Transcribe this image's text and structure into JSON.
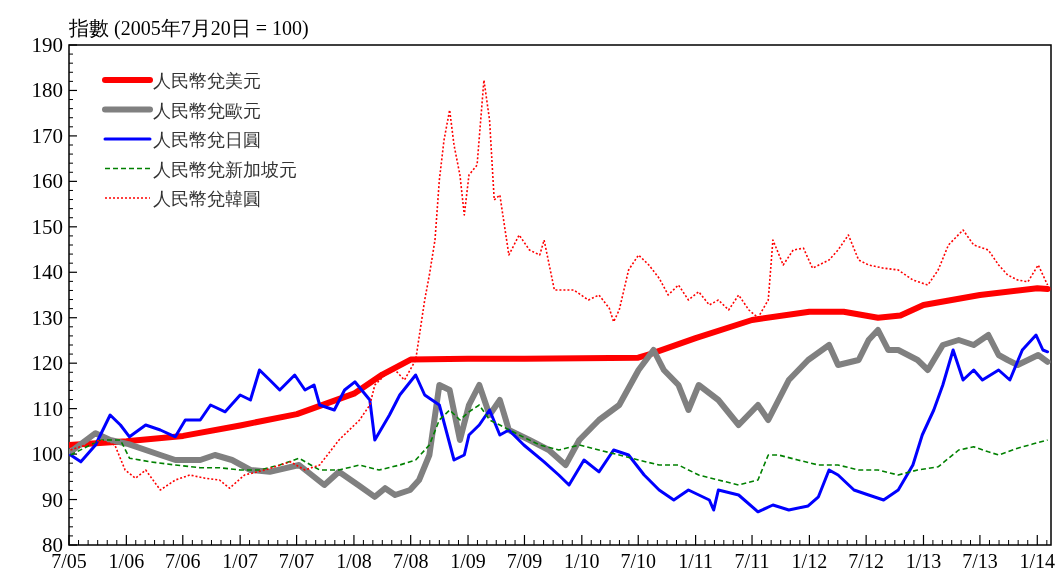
{
  "chart_data": {
    "type": "line",
    "ylabel": "指數 (2005年7月20日 = 100)",
    "xlim": [
      "2005-07-01",
      "2014-02-14"
    ],
    "ylim": [
      80,
      190
    ],
    "xticks": [
      {
        "value": "2005-07-01",
        "label": "7/05"
      },
      {
        "value": "2006-01-01",
        "label": "1/06"
      },
      {
        "value": "2006-07-01",
        "label": "7/06"
      },
      {
        "value": "2007-01-01",
        "label": "1/07"
      },
      {
        "value": "2007-07-01",
        "label": "7/07"
      },
      {
        "value": "2008-01-01",
        "label": "1/08"
      },
      {
        "value": "2008-07-01",
        "label": "7/08"
      },
      {
        "value": "2009-01-01",
        "label": "1/09"
      },
      {
        "value": "2009-07-01",
        "label": "7/09"
      },
      {
        "value": "2010-01-01",
        "label": "1/10"
      },
      {
        "value": "2010-07-01",
        "label": "7/10"
      },
      {
        "value": "2011-01-01",
        "label": "1/11"
      },
      {
        "value": "2011-07-01",
        "label": "7/11"
      },
      {
        "value": "2012-01-01",
        "label": "1/12"
      },
      {
        "value": "2012-07-01",
        "label": "7/12"
      },
      {
        "value": "2013-01-01",
        "label": "1/13"
      },
      {
        "value": "2013-07-01",
        "label": "7/13"
      },
      {
        "value": "2014-01-01",
        "label": "1/14"
      }
    ],
    "yticks": [
      80,
      90,
      100,
      110,
      120,
      130,
      140,
      150,
      160,
      170,
      180,
      190
    ],
    "grid": false,
    "legend": "top left",
    "series": [
      {
        "name": "人民幣兌美元",
        "color": "#ff0000",
        "line_style": "solid",
        "x": [
          "2005-07-02",
          "2006-01-01",
          "2006-07-02",
          "2007-01-01",
          "2007-07-02",
          "2008-01-01",
          "2008-04-01",
          "2008-07-01",
          "2009-01-01",
          "2009-07-01",
          "2010-01-01",
          "2010-07-01",
          "2010-08-08",
          "2011-01-01",
          "2011-07-01",
          "2012-01-01",
          "2012-04-20",
          "2012-08-08",
          "2012-10-19",
          "2013-01-01",
          "2013-07-01",
          "2014-01-01",
          "2014-02-03"
        ],
        "values": [
          102,
          102.8,
          104,
          106.3,
          108.8,
          113.3,
          117.5,
          120.8,
          121,
          121,
          121.1,
          121.2,
          122,
          125.5,
          129.5,
          131.3,
          131.3,
          130,
          130.5,
          132.8,
          135,
          136.5,
          136.3
        ]
      },
      {
        "name": "人民幣兌歐元",
        "color": "#808080",
        "line_style": "solid",
        "x": [
          "2005-07-06",
          "2005-09-24",
          "2005-11-10",
          "2006-01-08",
          "2006-04-20",
          "2006-06-07",
          "2006-08-26",
          "2006-10-12",
          "2006-12-06",
          "2007-02-03",
          "2007-04-06",
          "2007-07-09",
          "2007-09-28",
          "2007-11-14",
          "2008-01-19",
          "2008-03-08",
          "2008-04-10",
          "2008-05-12",
          "2008-06-29",
          "2008-07-28",
          "2008-08-30",
          "2008-10-01",
          "2008-11-03",
          "2008-12-06",
          "2009-01-04",
          "2009-02-06",
          "2009-03-11",
          "2009-04-13",
          "2009-05-12",
          "2009-07-17",
          "2009-09-17",
          "2009-11-10",
          "2009-12-24",
          "2010-02-25",
          "2010-05-01",
          "2010-07-02",
          "2010-08-19",
          "2010-09-21",
          "2010-11-07",
          "2010-12-09",
          "2011-01-11",
          "2011-03-15",
          "2011-05-19",
          "2011-07-20",
          "2011-08-22",
          "2011-10-27",
          "2011-12-28",
          "2012-03-04",
          "2012-04-02",
          "2012-06-07",
          "2012-07-09",
          "2012-08-08",
          "2012-09-10",
          "2012-10-12",
          "2012-12-13",
          "2013-01-15",
          "2013-03-04",
          "2013-04-24",
          "2013-06-11",
          "2013-07-28",
          "2013-08-30",
          "2013-09-28",
          "2013-10-30",
          "2014-01-04",
          "2014-02-03"
        ],
        "values": [
          100.5,
          104.6,
          103.1,
          102.2,
          99.8,
          98.7,
          98.7,
          99.8,
          98.7,
          96.5,
          96.1,
          97.6,
          93.2,
          96.1,
          93.0,
          90.6,
          92.5,
          91.0,
          92.1,
          94.3,
          99.8,
          115.2,
          114.1,
          103.1,
          110.8,
          115.2,
          108.6,
          111.9,
          105.3,
          103.1,
          100.9,
          97.6,
          103.1,
          107.5,
          110.8,
          118.5,
          122.9,
          118.5,
          115.2,
          109.7,
          115.2,
          111.9,
          106.4,
          110.8,
          107.5,
          116.3,
          120.7,
          124.0,
          119.6,
          120.7,
          125.1,
          127.3,
          122.9,
          122.9,
          120.7,
          118.5,
          124.0,
          125.1,
          124.0,
          126.2,
          121.8,
          120.7,
          119.6,
          121.8,
          120.3
        ]
      },
      {
        "name": "人民幣兌日圓",
        "color": "#0000ff",
        "line_style": "solid",
        "x": [
          "2005-07-06",
          "2005-08-08",
          "2005-09-24",
          "2005-11-10",
          "2005-12-13",
          "2006-01-11",
          "2006-03-04",
          "2006-04-20",
          "2006-06-07",
          "2006-07-09",
          "2006-08-26",
          "2006-09-28",
          "2006-11-14",
          "2007-01-01",
          "2007-02-03",
          "2007-03-04",
          "2007-04-06",
          "2007-05-08",
          "2007-06-25",
          "2007-07-28",
          "2007-08-26",
          "2007-09-13",
          "2007-10-30",
          "2007-12-02",
          "2008-01-04",
          "2008-02-21",
          "2008-03-08",
          "2008-04-24",
          "2008-05-27",
          "2008-07-17",
          "2008-08-15",
          "2008-10-01",
          "2008-11-17",
          "2008-12-20",
          "2009-01-04",
          "2009-02-06",
          "2009-03-11",
          "2009-04-13",
          "2009-05-12",
          "2009-06-29",
          "2009-09-02",
          "2009-10-19",
          "2009-11-21",
          "2010-01-08",
          "2010-02-25",
          "2010-04-13",
          "2010-05-31",
          "2010-07-20",
          "2010-09-06",
          "2010-10-23",
          "2010-12-09",
          "2011-02-14",
          "2011-02-28",
          "2011-03-15",
          "2011-05-19",
          "2011-07-20",
          "2011-09-06",
          "2011-10-27",
          "2011-12-28",
          "2012-01-30",
          "2012-03-04",
          "2012-04-02",
          "2012-05-23",
          "2012-07-09",
          "2012-08-26",
          "2012-10-12",
          "2012-11-28",
          "2012-12-28",
          "2013-02-03",
          "2013-03-04",
          "2013-04-06",
          "2013-05-08",
          "2013-06-11",
          "2013-07-09",
          "2013-08-30",
          "2013-10-05",
          "2013-11-14",
          "2013-12-28",
          "2014-01-19",
          "2014-02-03"
        ],
        "values": [
          99.8,
          98.3,
          102.0,
          108.6,
          106.4,
          103.8,
          106.4,
          105.3,
          103.8,
          107.5,
          107.5,
          110.8,
          109.3,
          113.0,
          111.9,
          118.5,
          116.3,
          114.1,
          117.4,
          114.1,
          115.2,
          110.8,
          109.7,
          114.1,
          115.9,
          111.9,
          103.1,
          108.6,
          113.0,
          117.4,
          113.0,
          110.8,
          98.7,
          99.8,
          104.2,
          106.4,
          109.7,
          104.2,
          105.3,
          102.0,
          98.3,
          95.4,
          93.2,
          98.7,
          96.1,
          100.9,
          99.8,
          95.4,
          92.1,
          89.9,
          92.1,
          89.9,
          87.7,
          92.1,
          91.0,
          87.3,
          88.8,
          87.7,
          88.6,
          90.6,
          96.5,
          95.4,
          92.1,
          91.0,
          89.9,
          92.1,
          97.6,
          104.2,
          109.7,
          115.2,
          122.9,
          116.3,
          118.5,
          116.3,
          118.5,
          116.3,
          122.9,
          126.2,
          122.9,
          122.5
        ]
      },
      {
        "name": "人民幣兌新加坡元",
        "color": "#008000",
        "line_style": "dashed",
        "x": [
          "2005-07-06",
          "2005-10-09",
          "2005-12-13",
          "2006-01-11",
          "2006-03-19",
          "2006-06-07",
          "2006-08-26",
          "2006-10-27",
          "2007-01-01",
          "2007-03-04",
          "2007-05-08",
          "2007-07-09",
          "2007-09-13",
          "2007-11-14",
          "2008-01-19",
          "2008-03-22",
          "2008-05-27",
          "2008-07-17",
          "2008-08-30",
          "2008-10-01",
          "2008-11-03",
          "2008-12-06",
          "2009-01-04",
          "2009-02-06",
          "2009-03-11",
          "2009-04-13",
          "2009-06-14",
          "2009-08-19",
          "2009-10-19",
          "2009-12-24",
          "2010-02-25",
          "2010-05-01",
          "2010-07-02",
          "2010-09-06",
          "2010-11-07",
          "2011-01-11",
          "2011-03-15",
          "2011-05-19",
          "2011-07-20",
          "2011-08-22",
          "2011-09-24",
          "2011-11-25",
          "2012-01-30",
          "2012-04-02",
          "2012-06-07",
          "2012-08-08",
          "2012-10-12",
          "2012-12-13",
          "2013-02-17",
          "2013-04-24",
          "2013-06-11",
          "2013-07-28",
          "2013-08-30",
          "2013-10-30",
          "2013-12-17",
          "2014-02-03"
        ],
        "values": [
          99.8,
          103.1,
          103.1,
          99.1,
          98.3,
          97.6,
          97.0,
          97.0,
          96.5,
          96.5,
          97.6,
          99.1,
          96.5,
          96.5,
          97.6,
          96.5,
          97.6,
          98.7,
          102.0,
          107.5,
          109.7,
          107.5,
          109.3,
          110.8,
          107.5,
          106.4,
          104.2,
          102.0,
          100.9,
          102.0,
          100.9,
          99.8,
          98.7,
          97.6,
          97.6,
          95.4,
          94.3,
          93.2,
          94.3,
          99.8,
          99.8,
          98.7,
          97.6,
          97.6,
          96.5,
          96.5,
          95.4,
          96.5,
          97.2,
          100.9,
          101.6,
          100.5,
          99.8,
          101.3,
          102.2,
          103.1
        ]
      },
      {
        "name": "人民幣兌韓圓",
        "color": "#ff0000",
        "line_style": "dotted",
        "x": [
          "2005-07-06",
          "2005-10-09",
          "2005-11-25",
          "2005-12-28",
          "2006-01-30",
          "2006-03-04",
          "2006-04-20",
          "2006-06-07",
          "2006-07-24",
          "2006-09-10",
          "2006-10-27",
          "2006-11-28",
          "2007-01-15",
          "2007-03-22",
          "2007-06-11",
          "2007-07-28",
          "2007-09-13",
          "2007-11-14",
          "2007-12-17",
          "2008-01-19",
          "2008-02-21",
          "2008-03-08",
          "2008-04-10",
          "2008-05-12",
          "2008-06-11",
          "2008-07-17",
          "2008-08-15",
          "2008-08-30",
          "2008-09-17",
          "2008-10-01",
          "2008-10-16",
          "2008-11-03",
          "2008-11-17",
          "2008-12-06",
          "2008-12-20",
          "2009-01-04",
          "2009-01-30",
          "2009-02-21",
          "2009-03-11",
          "2009-03-26",
          "2009-04-13",
          "2009-05-12",
          "2009-06-14",
          "2009-07-17",
          "2009-08-19",
          "2009-09-02",
          "2009-10-05",
          "2009-12-06",
          "2010-01-22",
          "2010-02-25",
          "2010-03-30",
          "2010-04-13",
          "2010-05-01",
          "2010-05-31",
          "2010-07-02",
          "2010-08-04",
          "2010-09-06",
          "2010-10-05",
          "2010-11-07",
          "2010-12-09",
          "2011-01-11",
          "2011-02-14",
          "2011-03-15",
          "2011-04-17",
          "2011-05-19",
          "2011-06-21",
          "2011-07-20",
          "2011-08-22",
          "2011-09-06",
          "2011-10-09",
          "2011-11-10",
          "2011-12-13",
          "2012-01-11",
          "2012-03-04",
          "2012-04-02",
          "2012-05-05",
          "2012-06-07",
          "2012-07-09",
          "2012-08-26",
          "2012-10-12",
          "2012-11-28",
          "2013-01-15",
          "2013-02-17",
          "2013-03-22",
          "2013-05-08",
          "2013-06-11",
          "2013-07-28",
          "2013-08-30",
          "2013-09-28",
          "2013-10-30",
          "2013-12-02",
          "2014-01-04",
          "2014-02-03"
        ],
        "values": [
          100.9,
          103.1,
          102.0,
          96.5,
          94.7,
          96.5,
          92.1,
          94.3,
          95.4,
          94.7,
          94.3,
          92.5,
          95.4,
          96.5,
          98.3,
          96.5,
          97.6,
          103.1,
          105.3,
          107.5,
          110.8,
          115.2,
          117.4,
          118.5,
          116.3,
          120.7,
          133.9,
          139.4,
          147.1,
          160.3,
          169.1,
          175.7,
          168.0,
          161.4,
          152.6,
          161.4,
          163.6,
          182.3,
          173.5,
          155.9,
          157.0,
          143.8,
          148.2,
          144.9,
          143.8,
          147.1,
          136.1,
          136.1,
          133.9,
          135.0,
          132.1,
          129.1,
          131.7,
          140.5,
          143.8,
          141.6,
          138.7,
          135.0,
          137.2,
          133.9,
          135.7,
          132.8,
          133.9,
          131.7,
          135.0,
          131.7,
          130.0,
          133.9,
          147.1,
          141.6,
          144.9,
          145.3,
          140.9,
          142.7,
          144.9,
          148.2,
          142.7,
          141.6,
          140.9,
          140.5,
          138.3,
          137.2,
          140.5,
          146.0,
          149.3,
          146.0,
          144.9,
          141.6,
          139.4,
          138.3,
          137.9,
          141.6,
          137.2
        ]
      }
    ]
  }
}
